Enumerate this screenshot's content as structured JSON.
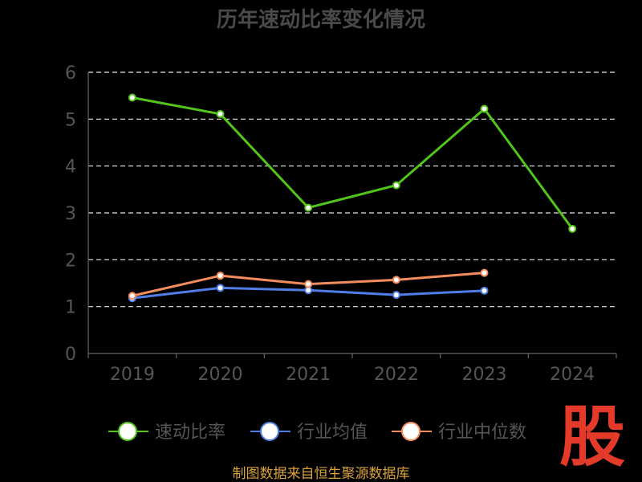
{
  "colors": {
    "background": "#000000",
    "text": "#555555",
    "title": "#4a4a4a",
    "grid": "#e6e6e6",
    "footer": "#d9a23d",
    "brand": "#e33a2a"
  },
  "brand_mark": "股",
  "footer_text": "制图数据来自恒生聚源数据库",
  "chart_data": {
    "type": "line",
    "title": "历年速动比率变化情况",
    "xlabel": "",
    "ylabel": "",
    "categories": [
      "2019",
      "2020",
      "2021",
      "2022",
      "2023",
      "2024"
    ],
    "ylim": [
      0,
      6
    ],
    "yticks": [
      "0",
      "1",
      "2",
      "3",
      "4",
      "5",
      "6"
    ],
    "grid": true,
    "legend_position": "bottom",
    "series": [
      {
        "name": "速动比率",
        "color": "#52c41a",
        "values": [
          5.46,
          5.11,
          3.11,
          3.59,
          5.22,
          2.66
        ]
      },
      {
        "name": "行业均值",
        "color": "#4f7fe6",
        "values": [
          1.18,
          1.4,
          1.35,
          1.25,
          1.34,
          null
        ]
      },
      {
        "name": "行业中位数",
        "color": "#f58c5e",
        "values": [
          1.23,
          1.66,
          1.48,
          1.57,
          1.72,
          null
        ]
      }
    ]
  }
}
